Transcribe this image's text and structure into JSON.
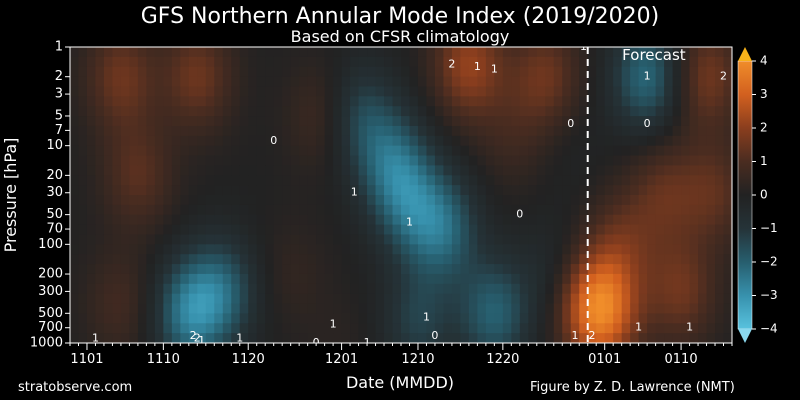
{
  "page": {
    "title": "GFS Northern Annular Mode Index (2019/2020)",
    "subtitle": "Based on CFSR climatology",
    "credit_left": "stratobserve.com",
    "credit_right": "Figure by Z. D. Lawrence (NMT)"
  },
  "colors": {
    "background": "#000000",
    "negative_strong": "#3fa7c4",
    "neutral": "#222222",
    "positive_strong": "#e8702a",
    "positive_max": "#f7b21a",
    "forecast_line": "#ffffff"
  },
  "chart_data": {
    "type": "heatmap",
    "title": "GFS Northern Annular Mode Index (2019/2020)",
    "subtitle": "Based on CFSR climatology",
    "xlabel": "Date (MMDD)",
    "ylabel": "Pressure [hPa]",
    "x_ticks": [
      {
        "label": "1101",
        "day": 0
      },
      {
        "label": "1110",
        "day": 9
      },
      {
        "label": "1120",
        "day": 19
      },
      {
        "label": "1201",
        "day": 30
      },
      {
        "label": "1210",
        "day": 39
      },
      {
        "label": "1220",
        "day": 49
      },
      {
        "label": "0101",
        "day": 61
      },
      {
        "label": "0110",
        "day": 70
      }
    ],
    "xlim_days": [
      -2,
      76
    ],
    "y_ticks": [
      1,
      2,
      3,
      5,
      7,
      10,
      20,
      30,
      50,
      70,
      100,
      200,
      300,
      500,
      700,
      1000
    ],
    "ylim": [
      1000,
      1
    ],
    "y_scale": "log",
    "colorbar": {
      "ticks": [
        4,
        3,
        2,
        1,
        0,
        -1,
        -2,
        -3,
        -4
      ],
      "labels": [
        "4",
        "3",
        "2",
        "1",
        "0",
        "−1",
        "−2",
        "−3",
        "−4"
      ],
      "range": [
        -4,
        4
      ],
      "extend": "both"
    },
    "forecast": {
      "label": "Forecast",
      "day": 59
    },
    "anomalies": [
      {
        "day": 4,
        "p": 2,
        "v": 1.5
      },
      {
        "day": 4,
        "p": 400,
        "v": 0.8
      },
      {
        "day": 6,
        "p": 20,
        "v": 1.2
      },
      {
        "day": 12,
        "p": 500,
        "v": -2.4
      },
      {
        "day": 13,
        "p": 2,
        "v": 1.5
      },
      {
        "day": 16,
        "p": 300,
        "v": -1.8
      },
      {
        "day": 24,
        "p": 200,
        "v": 0.4
      },
      {
        "day": 28,
        "p": 5,
        "v": 0.9
      },
      {
        "day": 30,
        "p": 1000,
        "v": 0.2
      },
      {
        "day": 32,
        "p": 5,
        "v": -1.5
      },
      {
        "day": 36,
        "p": 15,
        "v": -1.8
      },
      {
        "day": 38,
        "p": 40,
        "v": -1.6
      },
      {
        "day": 39,
        "p": 600,
        "v": -1.3
      },
      {
        "day": 42,
        "p": 70,
        "v": -2.0
      },
      {
        "day": 45,
        "p": 1.5,
        "v": 2.1
      },
      {
        "day": 48,
        "p": 500,
        "v": -2.0
      },
      {
        "day": 50,
        "p": 8,
        "v": 0.6
      },
      {
        "day": 54,
        "p": 2,
        "v": 1.5
      },
      {
        "day": 55,
        "p": 200,
        "v": -0.6
      },
      {
        "day": 57,
        "p": 10,
        "v": -0.2
      },
      {
        "day": 59,
        "p": 400,
        "v": 1.6
      },
      {
        "day": 61,
        "p": 500,
        "v": 2.6
      },
      {
        "day": 63,
        "p": 100,
        "v": 1.2
      },
      {
        "day": 66,
        "p": 2,
        "v": -2.2
      },
      {
        "day": 68,
        "p": 30,
        "v": 1.2
      },
      {
        "day": 70,
        "p": 300,
        "v": 1.5
      },
      {
        "day": 73,
        "p": 2,
        "v": 1.6
      },
      {
        "day": 74,
        "p": 30,
        "v": 1.2
      }
    ],
    "contour_labels": [
      {
        "text": "1",
        "day": 1,
        "p": 900
      },
      {
        "text": "2",
        "day": 12.5,
        "p": 850
      },
      {
        "text": "2",
        "day": 13,
        "p": 900
      },
      {
        "text": "1",
        "day": 13.5,
        "p": 950
      },
      {
        "text": "1",
        "day": 18,
        "p": 900
      },
      {
        "text": "0",
        "day": 22,
        "p": 9
      },
      {
        "text": "0",
        "day": 27,
        "p": 1000
      },
      {
        "text": "1",
        "day": 29,
        "p": 650
      },
      {
        "text": "1",
        "day": 33,
        "p": 1000
      },
      {
        "text": "1",
        "day": 38,
        "p": 60
      },
      {
        "text": "1",
        "day": 31.5,
        "p": 30
      },
      {
        "text": "0",
        "day": 41,
        "p": 850
      },
      {
        "text": "1",
        "day": 40,
        "p": 550
      },
      {
        "text": "2",
        "day": 43,
        "p": 1.5
      },
      {
        "text": "1",
        "day": 48,
        "p": 1.7
      },
      {
        "text": "1",
        "day": 46,
        "p": 1.6
      },
      {
        "text": "0",
        "day": 51,
        "p": 50
      },
      {
        "text": "0",
        "day": 57,
        "p": 6
      },
      {
        "text": "1",
        "day": 57.5,
        "p": 850
      },
      {
        "text": "2",
        "day": 59.5,
        "p": 850
      },
      {
        "text": "1",
        "day": 58.5,
        "p": 1.0
      },
      {
        "text": "1",
        "day": 66,
        "p": 2
      },
      {
        "text": "0",
        "day": 66,
        "p": 6
      },
      {
        "text": "1",
        "day": 65,
        "p": 700
      },
      {
        "text": "1",
        "day": 71,
        "p": 700
      },
      {
        "text": "2",
        "day": 75,
        "p": 2
      }
    ]
  }
}
